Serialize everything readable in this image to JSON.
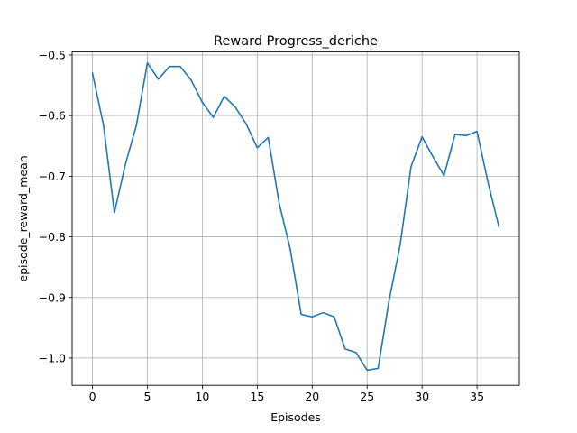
{
  "chart_data": {
    "type": "line",
    "title": "Reward Progress_deriche",
    "xlabel": "Episodes",
    "ylabel": "episode_reward_mean",
    "xlim": [
      -1.85,
      38.85
    ],
    "ylim": [
      -1.045,
      -0.495
    ],
    "xticks": [
      0,
      5,
      10,
      15,
      20,
      25,
      30,
      35
    ],
    "xtick_labels": [
      "0",
      "5",
      "10",
      "15",
      "20",
      "25",
      "30",
      "35"
    ],
    "yticks": [
      -0.5,
      -0.6,
      -0.7,
      -0.8,
      -0.9,
      -1.0
    ],
    "ytick_labels": [
      "−0.5",
      "−0.6",
      "−0.7",
      "−0.8",
      "−0.9",
      "−1.0"
    ],
    "grid": true,
    "color": "#1f77b4",
    "series": [
      {
        "x": [
          0,
          1,
          2,
          3,
          4,
          5,
          6,
          7,
          8,
          9,
          10,
          11,
          12,
          13,
          14,
          15,
          16,
          17,
          18,
          19,
          20,
          21,
          22,
          23,
          24,
          25,
          26,
          27,
          28,
          29,
          30,
          31,
          32,
          33,
          34,
          35,
          36,
          37
        ],
        "values": [
          -0.53,
          -0.615,
          -0.76,
          -0.68,
          -0.616,
          -0.513,
          -0.54,
          -0.519,
          -0.519,
          -0.542,
          -0.578,
          -0.603,
          -0.568,
          -0.586,
          -0.614,
          -0.653,
          -0.636,
          -0.745,
          -0.82,
          -0.928,
          -0.932,
          -0.925,
          -0.932,
          -0.985,
          -0.991,
          -1.02,
          -1.017,
          -0.905,
          -0.814,
          -0.684,
          -0.635,
          -0.668,
          -0.699,
          -0.631,
          -0.633,
          -0.626,
          -0.71,
          -0.784
        ]
      }
    ]
  }
}
